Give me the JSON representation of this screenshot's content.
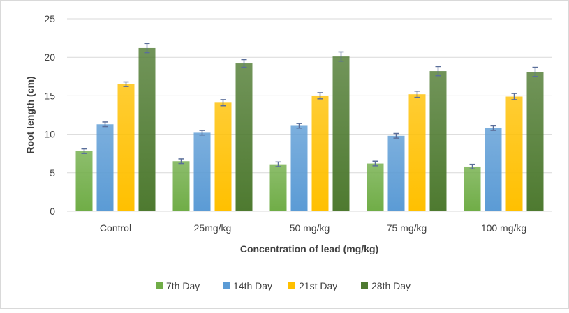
{
  "chart_data": {
    "type": "bar",
    "title": "",
    "xlabel": "Concentration of lead (mg/kg)",
    "ylabel": "Root length (cm)",
    "ylim": [
      0,
      25
    ],
    "yticks": [
      0,
      5,
      10,
      15,
      20,
      25
    ],
    "grid": true,
    "legend": "bottom",
    "categories": [
      "Control",
      "25mg/kg",
      "50 mg/kg",
      "75 mg/kg",
      "100 mg/kg"
    ],
    "series": [
      {
        "name": "7th Day",
        "color": "#70ad47",
        "values": [
          7.8,
          6.5,
          6.1,
          6.2,
          5.8
        ],
        "errors": [
          0.3,
          0.3,
          0.3,
          0.3,
          0.3
        ]
      },
      {
        "name": "14th Day",
        "color": "#5b9bd5",
        "values": [
          11.3,
          10.2,
          11.1,
          9.8,
          10.8
        ],
        "errors": [
          0.3,
          0.3,
          0.3,
          0.3,
          0.3
        ]
      },
      {
        "name": "21st Day",
        "color": "#ffc000",
        "values": [
          16.5,
          14.1,
          15.0,
          15.2,
          14.9
        ],
        "errors": [
          0.3,
          0.4,
          0.4,
          0.4,
          0.4
        ]
      },
      {
        "name": "28th Day",
        "color": "#4e7a30",
        "values": [
          21.2,
          19.2,
          20.1,
          18.2,
          18.1
        ],
        "errors": [
          0.6,
          0.5,
          0.6,
          0.6,
          0.6
        ]
      }
    ],
    "error_bar_color": "#5a6e9a"
  }
}
